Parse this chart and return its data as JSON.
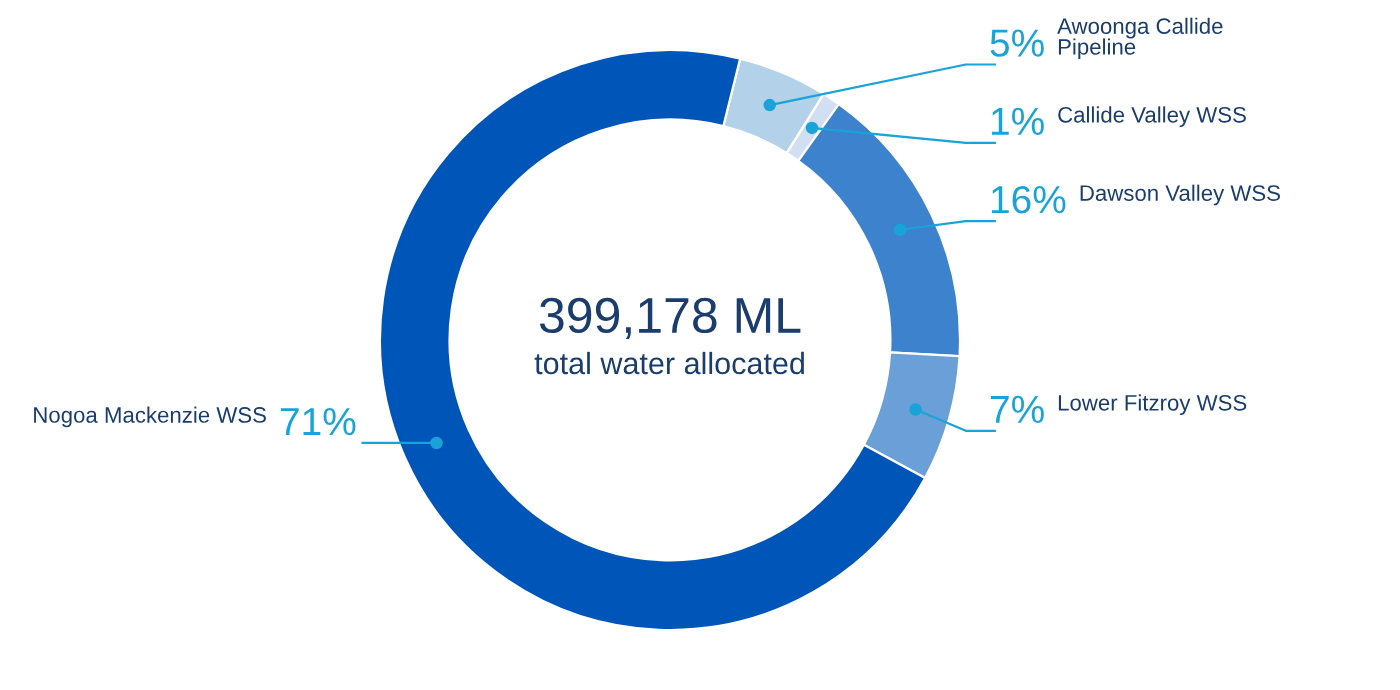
{
  "chart_data": {
    "type": "donut",
    "title": "399,178 ML",
    "subtitle": "total water allocated",
    "categories": [
      "Awoonga Callide\nPipeline",
      "Callide Valley WSS",
      "Dawson Valley WSS",
      "Lower Fitzroy WSS",
      "Nogoa Mackenzie WSS"
    ],
    "values": [
      5,
      1,
      16,
      7,
      71
    ],
    "colors": [
      "#b3d1e8",
      "#d0e0f2",
      "#3d82cc",
      "#6a9fd8",
      "#0055b8"
    ],
    "value_labels": [
      "5%",
      "1%",
      "16%",
      "7%",
      "71%"
    ],
    "legend": false
  }
}
